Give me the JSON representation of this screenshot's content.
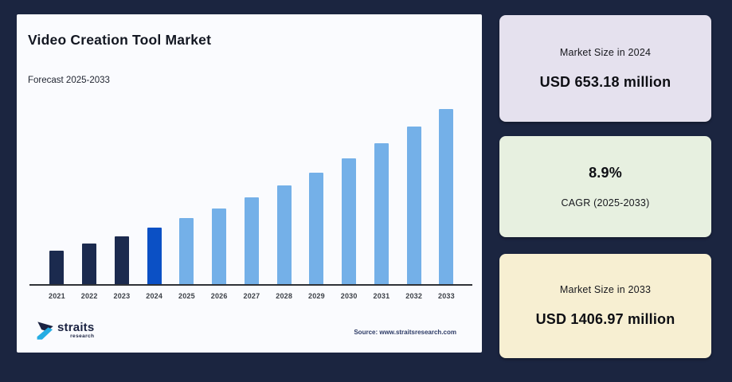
{
  "panel": {
    "title": "Video Creation Tool Market",
    "subtitle": "Forecast 2025-2033",
    "source": "Source: www.straitsresearch.com",
    "logo": {
      "name": "straits",
      "sub": "research"
    }
  },
  "chart_data": {
    "type": "bar",
    "title": "Video Creation Tool Market",
    "subtitle": "Forecast 2025-2033",
    "unit": "USD million",
    "categories": [
      "2021",
      "2022",
      "2023",
      "2024",
      "2025",
      "2026",
      "2027",
      "2028",
      "2029",
      "2030",
      "2031",
      "2032",
      "2033"
    ],
    "values": [
      505.76,
      550.78,
      599.8,
      653.18,
      711.31,
      774.62,
      843.56,
      918.64,
      1000.4,
      1089.43,
      1186.39,
      1291.98,
      1406.97
    ],
    "xlabel": "",
    "ylabel": "",
    "ylim": [
      290,
      1450
    ],
    "grid": false,
    "legend": false,
    "colors": {
      "historical": "#1b2a4e",
      "base_year": "#0b50c5",
      "forecast": "#74b0e8"
    },
    "color_roles": [
      "historical",
      "historical",
      "historical",
      "base_year",
      "forecast",
      "forecast",
      "forecast",
      "forecast",
      "forecast",
      "forecast",
      "forecast",
      "forecast",
      "forecast"
    ],
    "annotations": {
      "base_year_value": "USD 653.18 million (2024)",
      "end_year_value": "USD 1406.97 million (2033)",
      "cagr": "8.9% (2025-2033)"
    }
  },
  "cards": [
    {
      "label": "Market Size in 2024",
      "value": "USD 653.18 million",
      "bg": "#e5e1ee"
    },
    {
      "value": "8.9%",
      "label": "CAGR (2025-2033)",
      "bg": "#e7f0e0"
    },
    {
      "label": "Market Size in 2033",
      "value": "USD 1406.97 million",
      "bg": "#f7efd2"
    }
  ],
  "colors": {
    "page_bg": "#1b2540",
    "panel_bg": "#fafbfe",
    "axis": "#2f3237",
    "logo_cyan": "#25ade3",
    "logo_navy": "#1b2342"
  }
}
